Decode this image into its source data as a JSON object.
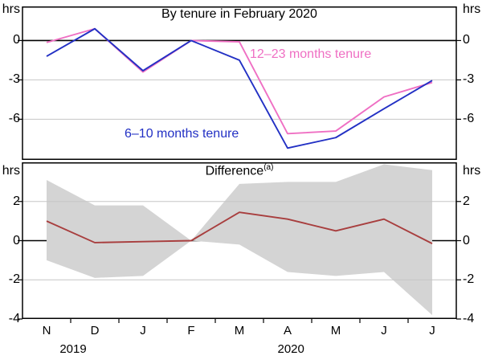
{
  "figure_unit": "hrs",
  "titles": {
    "top_panel": "By tenure in February 2020",
    "bottom_panel": "Difference",
    "bottom_panel_footnote_marker": "(a)"
  },
  "colors": {
    "pink_series": "#ef6fc3",
    "blue_series": "#2230c4",
    "red_series": "#a83e3e",
    "band_fill": "#d4d4d4",
    "gridline": "#c6c6c6",
    "axis": "#000000"
  },
  "ticks": {
    "p1": [
      "0",
      "-3",
      "-6"
    ],
    "p2": [
      "2",
      "0",
      "-2",
      "-4"
    ]
  },
  "x_axis": {
    "months": [
      "N",
      "D",
      "J",
      "F",
      "M",
      "A",
      "M",
      "J",
      "J"
    ],
    "years": [
      {
        "label": "2019",
        "x_index": 0.55
      },
      {
        "label": "2020",
        "x_index": 5.07
      }
    ]
  },
  "chart_data": [
    {
      "type": "line",
      "panel": "top",
      "title": "By tenure in February 2020",
      "ylabel": "hrs",
      "ylim": [
        -9.1,
        2.6
      ],
      "yticks": [
        0,
        -3,
        -6
      ],
      "grid": true,
      "zero_line": true,
      "categories": [
        "Nov 2019",
        "Dec 2019",
        "Jan 2020",
        "Feb 2020",
        "Mar 2020",
        "Apr 2020",
        "May 2020",
        "Jun 2020",
        "Jul 2020"
      ],
      "series": [
        {
          "name": "12–23 months tenure",
          "color_key": "pink_series",
          "values": [
            -0.15,
            0.9,
            -2.4,
            0,
            -0.1,
            -7.1,
            -6.9,
            -4.3,
            -3.2
          ]
        },
        {
          "name": "6–10 months tenure",
          "color_key": "blue_series",
          "values": [
            -1.2,
            0.9,
            -2.3,
            0,
            -1.5,
            -8.2,
            -7.4,
            -5.2,
            -3.05
          ]
        }
      ],
      "legend_position": "inline-annotations"
    },
    {
      "type": "line+band",
      "panel": "bottom",
      "title": "Difference(a)",
      "ylabel": "hrs",
      "ylim": [
        -4,
        4
      ],
      "yticks": [
        2,
        0,
        -2,
        -4
      ],
      "grid": true,
      "zero_line": true,
      "categories": [
        "Nov 2019",
        "Dec 2019",
        "Jan 2020",
        "Feb 2020",
        "Mar 2020",
        "Apr 2020",
        "May 2020",
        "Jun 2020",
        "Jul 2020"
      ],
      "series": [
        {
          "name": "Difference",
          "color_key": "red_series",
          "values": [
            1.0,
            -0.1,
            -0.05,
            0,
            1.45,
            1.1,
            0.5,
            1.1,
            -0.15
          ]
        }
      ],
      "band": {
        "name": "confidence band",
        "upper": [
          3.1,
          1.8,
          1.8,
          0,
          2.9,
          3.0,
          3.0,
          3.9,
          3.6
        ],
        "lower": [
          -1.0,
          -1.9,
          -1.8,
          0,
          -0.2,
          -1.6,
          -1.8,
          -1.6,
          -3.8
        ]
      }
    }
  ]
}
